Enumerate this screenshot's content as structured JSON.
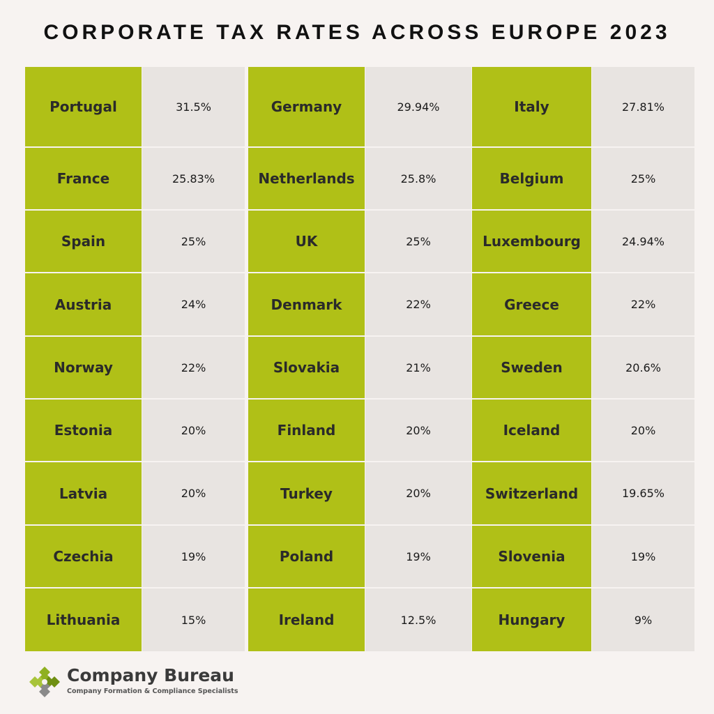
{
  "title": "CORPORATE TAX RATES ACROSS EUROPE 2023",
  "colors": {
    "country_bg": "#b0c017",
    "rate_bg": "#e8e4e1",
    "page_bg": "#f7f3f1",
    "logo_green": "#8fb021",
    "logo_gray": "#8a8a8a"
  },
  "logo": {
    "name": "Company Bureau",
    "tagline": "Company Formation & Compliance Specialists",
    "icon": "puzzle-piece-icon"
  },
  "chart_data": {
    "type": "table",
    "title": "CORPORATE TAX RATES ACROSS EUROPE 2023",
    "columns_of_pairs": 3,
    "rows": [
      [
        {
          "country": "Portugal",
          "rate": "31.5%"
        },
        {
          "country": "Germany",
          "rate": "29.94%"
        },
        {
          "country": "Italy",
          "rate": "27.81%"
        }
      ],
      [
        {
          "country": "France",
          "rate": "25.83%"
        },
        {
          "country": "Netherlands",
          "rate": "25.8%"
        },
        {
          "country": "Belgium",
          "rate": "25%"
        }
      ],
      [
        {
          "country": "Spain",
          "rate": "25%"
        },
        {
          "country": "UK",
          "rate": "25%"
        },
        {
          "country": "Luxembourg",
          "rate": "24.94%"
        }
      ],
      [
        {
          "country": "Austria",
          "rate": "24%"
        },
        {
          "country": "Denmark",
          "rate": "22%"
        },
        {
          "country": "Greece",
          "rate": "22%"
        }
      ],
      [
        {
          "country": "Norway",
          "rate": "22%"
        },
        {
          "country": "Slovakia",
          "rate": "21%"
        },
        {
          "country": "Sweden",
          "rate": "20.6%"
        }
      ],
      [
        {
          "country": "Estonia",
          "rate": "20%"
        },
        {
          "country": "Finland",
          "rate": "20%"
        },
        {
          "country": "Iceland",
          "rate": "20%"
        }
      ],
      [
        {
          "country": "Latvia",
          "rate": "20%"
        },
        {
          "country": "Turkey",
          "rate": "20%"
        },
        {
          "country": "Switzerland",
          "rate": "19.65%"
        }
      ],
      [
        {
          "country": "Czechia",
          "rate": "19%"
        },
        {
          "country": "Poland",
          "rate": "19%"
        },
        {
          "country": "Slovenia",
          "rate": "19%"
        }
      ],
      [
        {
          "country": "Lithuania",
          "rate": "15%"
        },
        {
          "country": "Ireland",
          "rate": "12.5%"
        },
        {
          "country": "Hungary",
          "rate": "9%"
        }
      ]
    ]
  }
}
